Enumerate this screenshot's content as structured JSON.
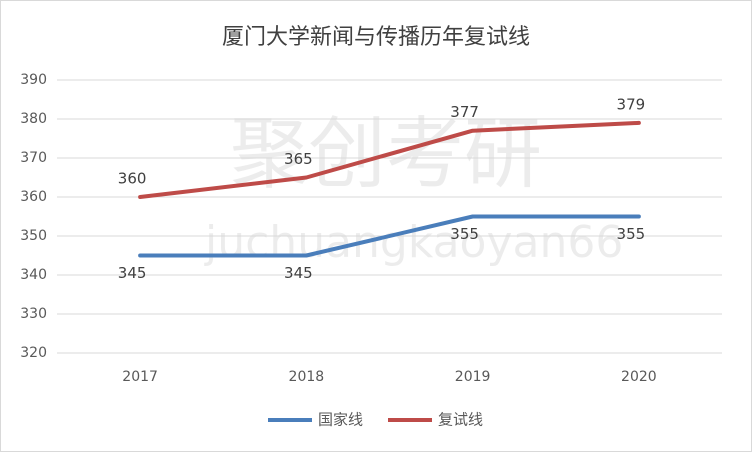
{
  "chart_data": {
    "type": "line",
    "title": "厦门大学新闻与传播历年复试线",
    "categories": [
      "2017",
      "2018",
      "2019",
      "2020"
    ],
    "series": [
      {
        "name": "国家线",
        "color": "#4a7ebb",
        "values": [
          345,
          345,
          355,
          355
        ]
      },
      {
        "name": "复试线",
        "color": "#be4b48",
        "values": [
          360,
          365,
          377,
          379
        ]
      }
    ],
    "ylim": [
      320,
      390
    ],
    "yticks": [
      320,
      330,
      340,
      350,
      360,
      370,
      380,
      390
    ],
    "grid": true,
    "legend": "bottom",
    "watermark": [
      "聚创考研",
      "juchuangkaoyan66"
    ]
  }
}
